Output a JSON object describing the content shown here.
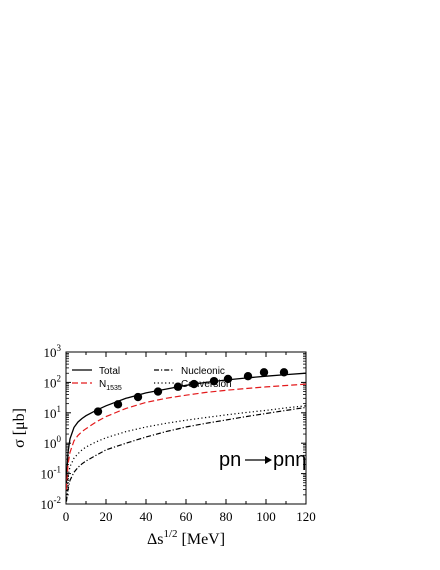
{
  "chart_data": {
    "type": "line",
    "xlabel": "Δs",
    "xlabel_sup": "1/2",
    "xlabel_unit": "[MeV]",
    "ylabel": "σ [μb]",
    "xlim": [
      0,
      120
    ],
    "ylim_log10": [
      -2,
      3
    ],
    "y_scale": "log",
    "x_ticks": [
      "0",
      "20",
      "40",
      "60",
      "80",
      "100",
      "120"
    ],
    "y_ticks": [
      {
        "base": "10",
        "exp": "-2"
      },
      {
        "base": "10",
        "exp": "-1"
      },
      {
        "base": "10",
        "exp": "0"
      },
      {
        "base": "10",
        "exp": "1"
      },
      {
        "base": "10",
        "exp": "2"
      },
      {
        "base": "10",
        "exp": "3"
      }
    ],
    "legend": {
      "placement": "top-left",
      "items": [
        {
          "label": "Total",
          "style": "solid",
          "color": "#000000"
        },
        {
          "label": "N",
          "sub": "1535",
          "style": "dashed",
          "color": "#e31a1c"
        },
        {
          "label": "Nucleonic",
          "style": "dashdot",
          "color": "#000000"
        },
        {
          "label": "Conversion",
          "style": "dotted",
          "color": "#000000"
        }
      ]
    },
    "annotation": {
      "left": "pn",
      "right": "pnη"
    },
    "series": [
      {
        "name": "Total",
        "style": "solid",
        "color": "#000000",
        "x": [
          0.2,
          1,
          2,
          4,
          6,
          8,
          10,
          15,
          20,
          30,
          40,
          50,
          60,
          70,
          80,
          90,
          100,
          110,
          120
        ],
        "y": [
          0.05,
          0.5,
          1.4,
          3.3,
          5.0,
          6.5,
          8.0,
          12,
          17,
          30,
          45,
          60,
          80,
          100,
          120,
          140,
          160,
          180,
          200
        ]
      },
      {
        "name": "N1535",
        "style": "dashed",
        "color": "#e31a1c",
        "x": [
          0.2,
          1,
          2,
          4,
          6,
          8,
          10,
          15,
          20,
          30,
          40,
          50,
          60,
          70,
          80,
          90,
          100,
          110,
          120
        ],
        "y": [
          0.03,
          0.2,
          0.5,
          1.2,
          1.8,
          2.4,
          3.0,
          5.0,
          7.5,
          14,
          22,
          30,
          38,
          47,
          55,
          63,
          71,
          79,
          88
        ]
      },
      {
        "name": "Nucleonic",
        "style": "dashdot",
        "color": "#000000",
        "x": [
          0.2,
          1,
          2,
          4,
          6,
          8,
          10,
          15,
          20,
          30,
          40,
          50,
          60,
          70,
          80,
          90,
          100,
          110,
          120
        ],
        "y": [
          0.012,
          0.03,
          0.06,
          0.11,
          0.16,
          0.21,
          0.26,
          0.4,
          0.6,
          1.0,
          1.6,
          2.4,
          3.4,
          4.5,
          5.8,
          7.5,
          9.5,
          12,
          15
        ]
      },
      {
        "name": "Conversion",
        "style": "dotted",
        "color": "#000000",
        "x": [
          0.2,
          1,
          2,
          4,
          6,
          8,
          10,
          15,
          20,
          30,
          40,
          50,
          60,
          70,
          80,
          90,
          100,
          110,
          120
        ],
        "y": [
          0.015,
          0.08,
          0.17,
          0.32,
          0.45,
          0.6,
          0.75,
          1.1,
          1.5,
          2.4,
          3.4,
          4.5,
          5.7,
          7.0,
          8.5,
          10.2,
          12,
          14.5,
          17
        ]
      },
      {
        "name": "data",
        "style": "markers",
        "color": "#000000",
        "x": [
          16,
          26,
          36,
          46,
          56,
          64,
          74,
          81,
          91,
          99,
          109
        ],
        "y": [
          11,
          19,
          33,
          50,
          72,
          88,
          110,
          130,
          160,
          215,
          215
        ]
      }
    ]
  }
}
